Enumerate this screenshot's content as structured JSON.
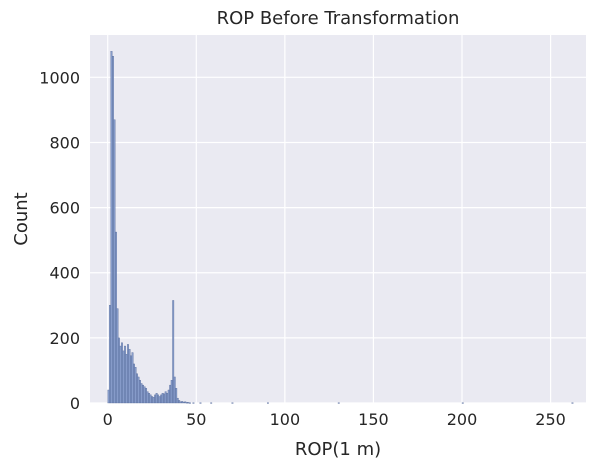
{
  "chart_data": {
    "type": "bar",
    "title": "ROP Before Transformation",
    "xlabel": "ROP(1 m)",
    "ylabel": "Count",
    "xlim": [
      -10,
      270
    ],
    "ylim": [
      0,
      1130
    ],
    "xticks": [
      0,
      50,
      100,
      150,
      200,
      250
    ],
    "yticks": [
      0,
      200,
      400,
      600,
      800,
      1000
    ],
    "grid": true,
    "bin_width": 0.85,
    "bins": [
      [
        0.0,
        40
      ],
      [
        0.85,
        300
      ],
      [
        1.7,
        1080
      ],
      [
        2.55,
        1065
      ],
      [
        3.4,
        870
      ],
      [
        4.25,
        525
      ],
      [
        5.1,
        290
      ],
      [
        5.95,
        200
      ],
      [
        6.8,
        175
      ],
      [
        7.65,
        185
      ],
      [
        8.5,
        160
      ],
      [
        9.35,
        175
      ],
      [
        10.2,
        150
      ],
      [
        11.05,
        180
      ],
      [
        11.9,
        165
      ],
      [
        12.75,
        145
      ],
      [
        13.6,
        155
      ],
      [
        14.45,
        120
      ],
      [
        15.3,
        110
      ],
      [
        16.15,
        90
      ],
      [
        17.0,
        80
      ],
      [
        17.85,
        70
      ],
      [
        18.7,
        60
      ],
      [
        19.55,
        55
      ],
      [
        20.4,
        50
      ],
      [
        21.25,
        45
      ],
      [
        22.1,
        35
      ],
      [
        22.95,
        30
      ],
      [
        23.8,
        25
      ],
      [
        24.65,
        20
      ],
      [
        25.5,
        18
      ],
      [
        26.35,
        25
      ],
      [
        27.2,
        30
      ],
      [
        28.05,
        25
      ],
      [
        28.9,
        20
      ],
      [
        29.75,
        25
      ],
      [
        30.6,
        30
      ],
      [
        31.45,
        28
      ],
      [
        32.3,
        35
      ],
      [
        33.15,
        30
      ],
      [
        34.0,
        40
      ],
      [
        34.85,
        55
      ],
      [
        35.7,
        70
      ],
      [
        36.55,
        315
      ],
      [
        37.4,
        80
      ],
      [
        38.25,
        45
      ],
      [
        39.1,
        15
      ],
      [
        39.95,
        8
      ],
      [
        40.8,
        4
      ],
      [
        41.65,
        5
      ],
      [
        42.5,
        3
      ],
      [
        43.35,
        4
      ],
      [
        44.2,
        2
      ],
      [
        45.05,
        2
      ],
      [
        46.0,
        1
      ],
      [
        48.0,
        1
      ],
      [
        52.0,
        1
      ],
      [
        58.0,
        1
      ],
      [
        70.0,
        1
      ],
      [
        90.0,
        1
      ],
      [
        130.0,
        1
      ],
      [
        200.0,
        1
      ],
      [
        262.0,
        1
      ]
    ],
    "colors": {
      "bar_fill": "#7b92c4",
      "bar_stroke": "#4a5f8f",
      "plot_bg": "#eaeaf2",
      "grid": "#ffffff"
    }
  }
}
